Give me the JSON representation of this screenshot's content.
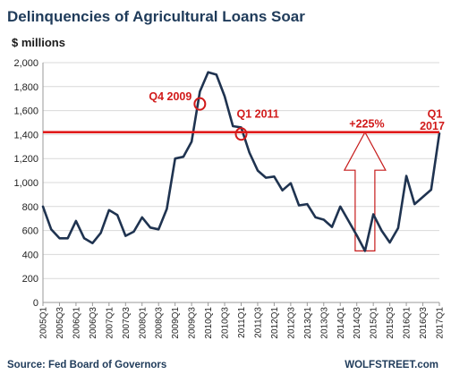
{
  "chart_data": {
    "type": "line",
    "title": "Delinquencies of Agricultural Loans Soar",
    "ylabel": "$ millions",
    "ylim": [
      0,
      2000
    ],
    "yticks": [
      "0",
      "200",
      "400",
      "600",
      "800",
      "1,000",
      "1,200",
      "1,400",
      "1,600",
      "1,800",
      "2,000"
    ],
    "grid": true,
    "x_tick_labels": [
      "2005Q1",
      "2005Q3",
      "2006Q1",
      "2006Q3",
      "2007Q1",
      "2007Q3",
      "2008Q1",
      "2008Q3",
      "2009Q1",
      "2009Q3",
      "2010Q1",
      "2010Q3",
      "2011Q1",
      "2011Q3",
      "2012Q1",
      "2012Q3",
      "2013Q1",
      "2013Q3",
      "2014Q1",
      "2014Q3",
      "2015Q1",
      "2015Q3",
      "2016Q1",
      "2016Q3",
      "2017Q1"
    ],
    "series": [
      {
        "color": "#1f3350",
        "values": [
          800,
          610,
          535,
          535,
          680,
          535,
          495,
          580,
          770,
          730,
          555,
          590,
          710,
          625,
          610,
          780,
          1200,
          1215,
          1340,
          1760,
          1920,
          1900,
          1720,
          1470,
          1460,
          1250,
          1100,
          1040,
          1050,
          935,
          995,
          810,
          820,
          710,
          690,
          630,
          800,
          680,
          560,
          430,
          735,
          600,
          500,
          620,
          1055,
          820,
          880,
          940,
          1410
        ]
      }
    ],
    "reference_line": {
      "value": 1420,
      "color": "#e01b1b"
    },
    "annotations": [
      {
        "text": "Q4 2009",
        "color": "#d11a1a"
      },
      {
        "text": "Q1 2011",
        "color": "#d11a1a"
      },
      {
        "text": "+225%",
        "color": "#d11a1a"
      },
      {
        "text": "Q1",
        "color": "#d11a1a"
      },
      {
        "text": "2017",
        "color": "#d11a1a"
      }
    ],
    "arrow_from_value": 430,
    "arrow_to_value": 1420
  },
  "footer": {
    "source": "Source: Fed Board of Governors",
    "brand": "WOLFSTREET.com"
  }
}
